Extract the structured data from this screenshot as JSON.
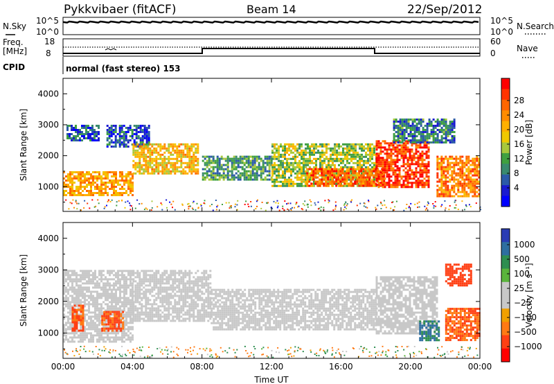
{
  "header": {
    "station": "Pykkvibaer (fitACF)",
    "beam": "Beam 14",
    "date": "22/Sep/2012"
  },
  "panels": {
    "noise": {
      "left_label": "N.Sky",
      "right_label": "N.Search",
      "left_ticks": [
        "10^5",
        "10^0"
      ],
      "right_ticks": [
        "10^5",
        "10^0"
      ]
    },
    "freq": {
      "left_label_1": "Freq.",
      "left_label_2": "[MHz]",
      "right_label": "Nave",
      "left_ticks": [
        "18",
        "8"
      ],
      "right_ticks": [
        "60",
        "0"
      ]
    },
    "cpid": {
      "label": "CPID",
      "text": "normal (fast stereo) 153"
    }
  },
  "colorbars": {
    "power": {
      "title": "Power [dB]",
      "ticks": [
        "28",
        "24",
        "20",
        "16",
        "12",
        "8",
        "4"
      ],
      "colors": [
        "#ff0000",
        "#ff3300",
        "#ff6600",
        "#ff8c00",
        "#ffb000",
        "#f0c800",
        "#a8c83c",
        "#40a040",
        "#3a8a6e",
        "#2c5aa8",
        "#1a1ad0",
        "#0000ff"
      ]
    },
    "velocity": {
      "title": "Velocity [m s⁻¹]",
      "ticks": [
        "1000",
        "500",
        "100",
        "25",
        "−25",
        "−100",
        "−500",
        "−1000"
      ],
      "colors": [
        "#2a3cb4",
        "#2e6ea0",
        "#2e8e50",
        "#5ab43c",
        "#c8c8c8",
        "#c8c8c8",
        "#f0a000",
        "#ff7a14",
        "#ff4014",
        "#ff0000"
      ]
    }
  },
  "chart_data": [
    {
      "type": "heatmap",
      "name": "power",
      "ylabel": "Slant Range [km]",
      "xlim": [
        0,
        24
      ],
      "ylim": [
        200,
        4500
      ],
      "yticks": [
        1000,
        2000,
        3000,
        4000
      ],
      "colorscale_range": [
        0,
        30
      ],
      "bands": [
        {
          "t0": 0.0,
          "t1": 4.0,
          "r0": 700,
          "r1": 1500,
          "level": 20
        },
        {
          "t0": 0.2,
          "t1": 2.0,
          "r0": 2500,
          "r1": 3000,
          "level": 6
        },
        {
          "t0": 2.5,
          "t1": 5.0,
          "r0": 2300,
          "r1": 3000,
          "level": 6
        },
        {
          "t0": 4.0,
          "t1": 7.8,
          "r0": 1400,
          "r1": 2400,
          "level": 18
        },
        {
          "t0": 8.0,
          "t1": 12.0,
          "r0": 1200,
          "r1": 2000,
          "level": 10
        },
        {
          "t0": 12.0,
          "t1": 18.0,
          "r0": 1000,
          "r1": 2400,
          "level": 14
        },
        {
          "t0": 14.0,
          "t1": 18.5,
          "r0": 1000,
          "r1": 1600,
          "level": 24
        },
        {
          "t0": 18.0,
          "t1": 21.0,
          "r0": 1000,
          "r1": 2500,
          "level": 26
        },
        {
          "t0": 19.0,
          "t1": 22.5,
          "r0": 2400,
          "r1": 3200,
          "level": 8
        },
        {
          "t0": 21.5,
          "t1": 24.0,
          "r0": 700,
          "r1": 2000,
          "level": 22
        }
      ]
    },
    {
      "type": "heatmap",
      "name": "velocity",
      "xlabel": "Time UT",
      "ylabel": "Slant Range [km]",
      "xlim": [
        0,
        24
      ],
      "ylim": [
        200,
        4500
      ],
      "xticks": [
        "00:00",
        "04:00",
        "08:00",
        "12:00",
        "16:00",
        "20:00",
        "00:00"
      ],
      "yticks": [
        1000,
        2000,
        3000,
        4000
      ],
      "colorscale_range": [
        -1000,
        1000
      ],
      "bands": [
        {
          "t0": 0.0,
          "t1": 4.0,
          "r0": 700,
          "r1": 3000,
          "level": 0
        },
        {
          "t0": 0.5,
          "t1": 1.2,
          "r0": 1100,
          "r1": 1900,
          "level": -300
        },
        {
          "t0": 2.2,
          "t1": 3.4,
          "r0": 1100,
          "r1": 1700,
          "level": -300
        },
        {
          "t0": 4.0,
          "t1": 8.5,
          "r0": 1400,
          "r1": 3000,
          "level": 0
        },
        {
          "t0": 8.5,
          "t1": 18.0,
          "r0": 1100,
          "r1": 2400,
          "level": 0
        },
        {
          "t0": 18.0,
          "t1": 21.5,
          "r0": 1000,
          "r1": 2800,
          "level": 0
        },
        {
          "t0": 20.5,
          "t1": 21.6,
          "r0": 800,
          "r1": 1400,
          "level": 300
        },
        {
          "t0": 22.0,
          "t1": 24.0,
          "r0": 800,
          "r1": 1800,
          "level": -300
        },
        {
          "t0": 22.0,
          "t1": 23.5,
          "r0": 2500,
          "r1": 3200,
          "level": -400
        }
      ]
    }
  ]
}
